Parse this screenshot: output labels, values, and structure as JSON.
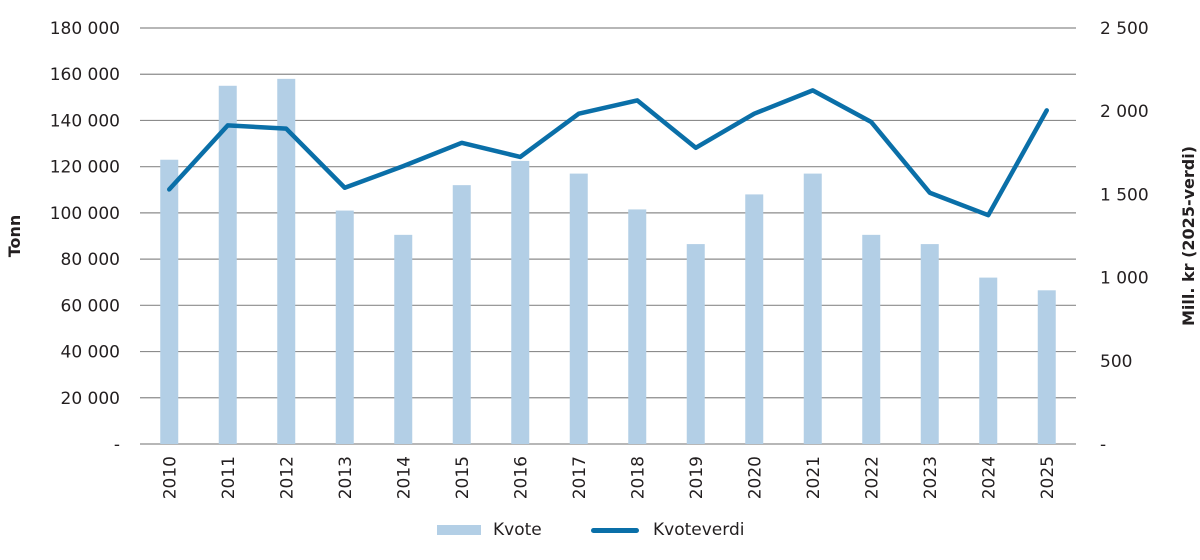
{
  "chart_data": {
    "type": "bar+line",
    "categories": [
      "2010",
      "2011",
      "2012",
      "2013",
      "2014",
      "2015",
      "2016",
      "2017",
      "2018",
      "2019",
      "2020",
      "2021",
      "2022",
      "2023",
      "2024",
      "2025"
    ],
    "series": [
      {
        "name": "Kvote",
        "type": "bar",
        "axis": "left",
        "color": "#b3cfe6",
        "values": [
          123000,
          155000,
          158000,
          101000,
          90500,
          112000,
          122500,
          117000,
          101500,
          86500,
          108000,
          117000,
          90500,
          86500,
          72000,
          66500
        ]
      },
      {
        "name": "Kvoteverdi",
        "type": "line",
        "axis": "right",
        "color": "#0a6fa8",
        "values": [
          1530,
          1915,
          1895,
          1540,
          1670,
          1810,
          1725,
          1985,
          2065,
          1780,
          1985,
          2125,
          1935,
          1510,
          1375,
          2005
        ]
      }
    ],
    "title": "",
    "xlabel": "",
    "ylabel": "Tonn",
    "y2label": "Mill. kr (2025-verdi)",
    "ylim": [
      0,
      180000
    ],
    "y2lim": [
      0,
      2500
    ],
    "yticks": [
      "-",
      "20 000",
      "40 000",
      "60 000",
      "80 000",
      "100 000",
      "120 000",
      "140 000",
      "160 000",
      "180 000"
    ],
    "y2ticks": [
      "-",
      "500",
      "1 000",
      "1 500",
      "2 000",
      "2 500"
    ],
    "grid": true,
    "legend_position": "bottom"
  },
  "legend": {
    "bar_label": "Kvote",
    "line_label": "Kvoteverdi"
  }
}
